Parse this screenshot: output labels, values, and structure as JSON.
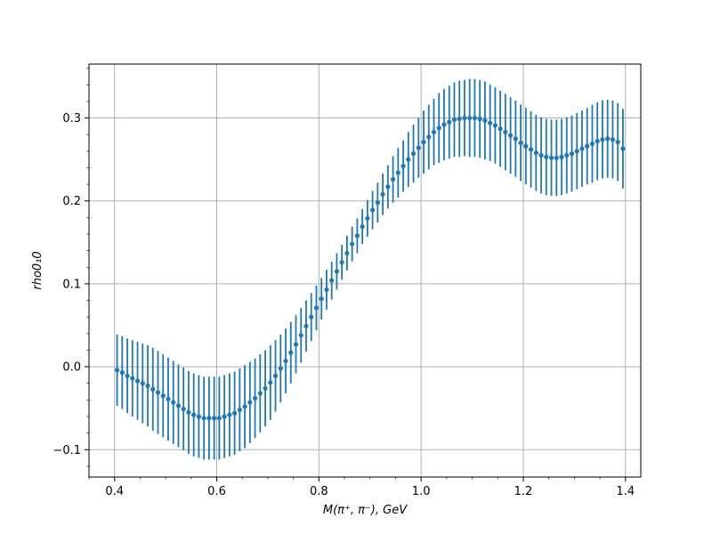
{
  "chart_data": {
    "type": "scatter",
    "xlabel": "M(π⁺, π⁻), GeV",
    "ylabel": "rho0₁0",
    "xlim": [
      0.35,
      1.43
    ],
    "ylim": [
      -0.133,
      0.365
    ],
    "grid": true,
    "xticks": [
      0.4,
      0.6,
      0.8,
      1.0,
      1.2,
      1.4
    ],
    "xtick_labels": [
      "0.4",
      "0.6",
      "0.8",
      "1.0",
      "1.2",
      "1.4"
    ],
    "yticks": [
      -0.1,
      0.0,
      0.1,
      0.2,
      0.3
    ],
    "ytick_labels": [
      "−0.1",
      "0.0",
      "0.1",
      "0.2",
      "0.3"
    ],
    "marker_color": "#1f77b4",
    "series": [
      {
        "x": [
          0.405,
          0.415,
          0.425,
          0.435,
          0.445,
          0.455,
          0.465,
          0.475,
          0.485,
          0.495,
          0.505,
          0.515,
          0.525,
          0.535,
          0.545,
          0.555,
          0.565,
          0.575,
          0.585,
          0.595,
          0.605,
          0.615,
          0.625,
          0.635,
          0.645,
          0.655,
          0.665,
          0.675,
          0.685,
          0.695,
          0.705,
          0.715,
          0.725,
          0.735,
          0.745,
          0.755,
          0.765,
          0.775,
          0.785,
          0.795,
          0.805,
          0.815,
          0.825,
          0.835,
          0.845,
          0.855,
          0.865,
          0.875,
          0.885,
          0.895,
          0.905,
          0.915,
          0.925,
          0.935,
          0.945,
          0.955,
          0.965,
          0.975,
          0.985,
          0.995,
          1.005,
          1.015,
          1.025,
          1.035,
          1.045,
          1.055,
          1.065,
          1.075,
          1.085,
          1.095,
          1.105,
          1.115,
          1.125,
          1.135,
          1.145,
          1.155,
          1.165,
          1.175,
          1.185,
          1.195,
          1.205,
          1.215,
          1.225,
          1.235,
          1.245,
          1.255,
          1.265,
          1.275,
          1.285,
          1.295,
          1.305,
          1.315,
          1.325,
          1.335,
          1.345,
          1.355,
          1.365,
          1.375,
          1.385,
          1.395
        ],
        "y": [
          -0.004,
          -0.007,
          -0.011,
          -0.014,
          -0.017,
          -0.02,
          -0.023,
          -0.027,
          -0.031,
          -0.035,
          -0.039,
          -0.043,
          -0.047,
          -0.051,
          -0.055,
          -0.058,
          -0.06,
          -0.062,
          -0.062,
          -0.062,
          -0.062,
          -0.06,
          -0.058,
          -0.056,
          -0.052,
          -0.048,
          -0.043,
          -0.038,
          -0.032,
          -0.026,
          -0.019,
          -0.011,
          -0.002,
          0.007,
          0.017,
          0.027,
          0.038,
          0.049,
          0.06,
          0.071,
          0.082,
          0.093,
          0.104,
          0.115,
          0.126,
          0.137,
          0.148,
          0.158,
          0.169,
          0.179,
          0.189,
          0.198,
          0.208,
          0.217,
          0.226,
          0.234,
          0.242,
          0.25,
          0.257,
          0.264,
          0.271,
          0.277,
          0.283,
          0.288,
          0.292,
          0.295,
          0.298,
          0.299,
          0.3,
          0.3,
          0.3,
          0.299,
          0.297,
          0.294,
          0.291,
          0.287,
          0.283,
          0.279,
          0.275,
          0.27,
          0.266,
          0.262,
          0.258,
          0.255,
          0.253,
          0.252,
          0.252,
          0.253,
          0.255,
          0.257,
          0.26,
          0.263,
          0.266,
          0.269,
          0.272,
          0.274,
          0.275,
          0.274,
          0.271,
          0.263
        ],
        "yerr": [
          0.043,
          0.044,
          0.045,
          0.046,
          0.047,
          0.048,
          0.049,
          0.05,
          0.05,
          0.05,
          0.05,
          0.05,
          0.05,
          0.05,
          0.05,
          0.05,
          0.05,
          0.05,
          0.05,
          0.05,
          0.05,
          0.05,
          0.05,
          0.05,
          0.05,
          0.05,
          0.049,
          0.048,
          0.047,
          0.046,
          0.045,
          0.043,
          0.041,
          0.039,
          0.037,
          0.035,
          0.033,
          0.031,
          0.029,
          0.027,
          0.025,
          0.024,
          0.023,
          0.022,
          0.021,
          0.021,
          0.021,
          0.021,
          0.021,
          0.022,
          0.023,
          0.024,
          0.025,
          0.026,
          0.028,
          0.03,
          0.031,
          0.033,
          0.035,
          0.036,
          0.038,
          0.039,
          0.04,
          0.042,
          0.043,
          0.044,
          0.045,
          0.046,
          0.046,
          0.047,
          0.047,
          0.047,
          0.047,
          0.046,
          0.046,
          0.046,
          0.046,
          0.046,
          0.046,
          0.046,
          0.046,
          0.046,
          0.046,
          0.046,
          0.046,
          0.046,
          0.046,
          0.046,
          0.046,
          0.046,
          0.046,
          0.046,
          0.046,
          0.047,
          0.047,
          0.047,
          0.047,
          0.047,
          0.047,
          0.048
        ]
      }
    ]
  }
}
